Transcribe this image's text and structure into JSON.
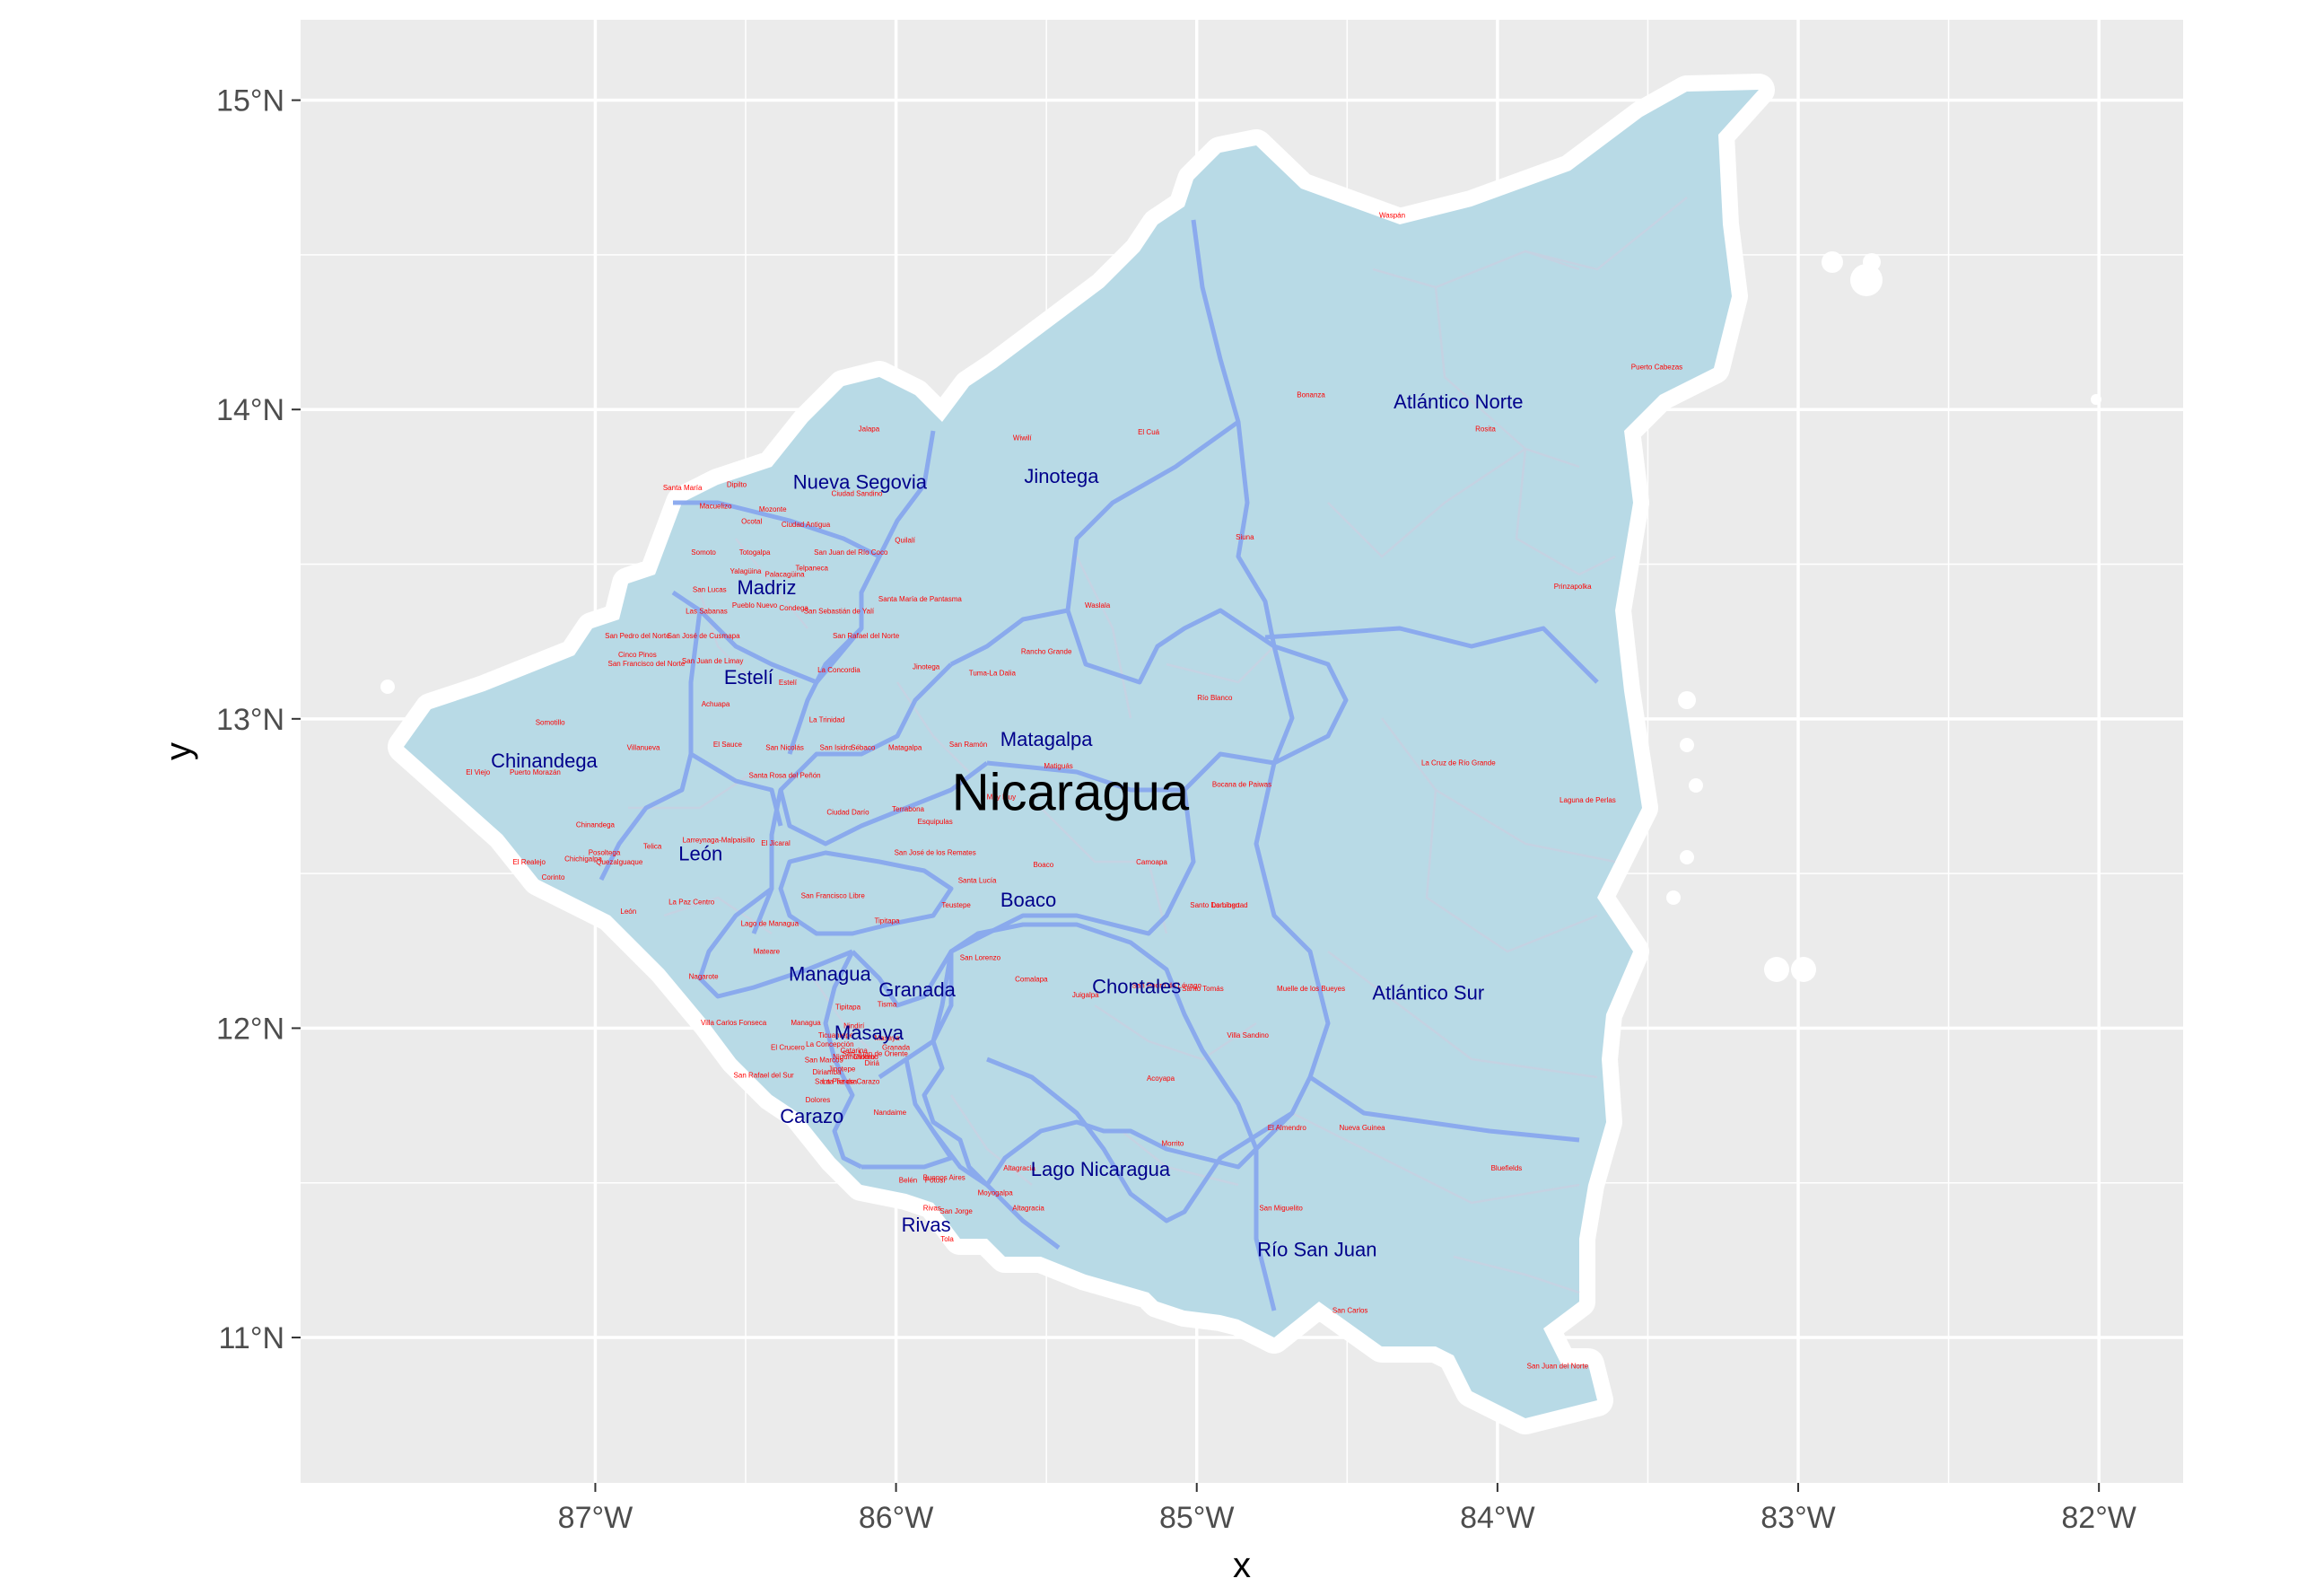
{
  "country": "Nicaragua",
  "colors": {
    "panel_bg": "#ebebeb",
    "grid": "#ffffff",
    "land_fill": "#b8dae6",
    "dept_border": "#88a8ee",
    "muni_border": "#c6d2e2",
    "dept_label": "#00008b",
    "muni_label": "#ff0000",
    "coast_halo": "#ffffff"
  },
  "axes": {
    "x_title": "x",
    "y_title": "y",
    "x_ticks": [
      {
        "lon": -87,
        "label": "87°W"
      },
      {
        "lon": -86,
        "label": "86°W"
      },
      {
        "lon": -85,
        "label": "85°W"
      },
      {
        "lon": -84,
        "label": "84°W"
      },
      {
        "lon": -83,
        "label": "83°W"
      },
      {
        "lon": -82,
        "label": "82°W"
      }
    ],
    "y_ticks": [
      {
        "lat": 11,
        "label": "11°N"
      },
      {
        "lat": 12,
        "label": "12°N"
      },
      {
        "lat": 13,
        "label": "13°N"
      },
      {
        "lat": 14,
        "label": "14°N"
      },
      {
        "lat": 15,
        "label": "15°N"
      }
    ],
    "lon_range": [
      -87.98,
      -81.72
    ],
    "lat_range": [
      10.53,
      15.26
    ],
    "grid": true
  },
  "country_label": {
    "text": "Nicaragua",
    "lon": -85.42,
    "lat": 12.75
  },
  "departments": [
    {
      "name": "Nueva Segovia",
      "lon": -86.12,
      "lat": 13.76
    },
    {
      "name": "Jinotega",
      "lon": -85.45,
      "lat": 13.78
    },
    {
      "name": "Atlántico Norte",
      "lon": -84.13,
      "lat": 14.02
    },
    {
      "name": "Madriz",
      "lon": -86.43,
      "lat": 13.42
    },
    {
      "name": "Estelí",
      "lon": -86.49,
      "lat": 13.13
    },
    {
      "name": "Chinandega",
      "lon": -87.17,
      "lat": 12.86
    },
    {
      "name": "Matagalpa",
      "lon": -85.5,
      "lat": 12.93
    },
    {
      "name": "León",
      "lon": -86.65,
      "lat": 12.56
    },
    {
      "name": "Boaco",
      "lon": -85.56,
      "lat": 12.41
    },
    {
      "name": "Managua",
      "lon": -86.22,
      "lat": 12.17
    },
    {
      "name": "Granada",
      "lon": -85.93,
      "lat": 12.12
    },
    {
      "name": "Chontales",
      "lon": -85.2,
      "lat": 12.13
    },
    {
      "name": "Atlántico Sur",
      "lon": -84.23,
      "lat": 12.11
    },
    {
      "name": "Masaya",
      "lon": -86.09,
      "lat": 11.98
    },
    {
      "name": "Carazo",
      "lon": -86.28,
      "lat": 11.71
    },
    {
      "name": "Lago Nicaragua",
      "lon": -85.32,
      "lat": 11.54
    },
    {
      "name": "Rivas",
      "lon": -85.9,
      "lat": 11.36
    },
    {
      "name": "Río San Juan",
      "lon": -84.6,
      "lat": 11.28
    }
  ],
  "municipalities": [
    {
      "name": "Waspán",
      "lon": -84.35,
      "lat": 14.62
    },
    {
      "name": "Puerto Cabezas",
      "lon": -83.47,
      "lat": 14.13
    },
    {
      "name": "Bonanza",
      "lon": -84.62,
      "lat": 14.04
    },
    {
      "name": "Rosita",
      "lon": -84.04,
      "lat": 13.93
    },
    {
      "name": "Wiwilí",
      "lon": -85.58,
      "lat": 13.9
    },
    {
      "name": "El Cuá",
      "lon": -85.16,
      "lat": 13.92
    },
    {
      "name": "Jalapa",
      "lon": -86.09,
      "lat": 13.93
    },
    {
      "name": "Siuna",
      "lon": -84.84,
      "lat": 13.58
    },
    {
      "name": "Prinzapolka",
      "lon": -83.75,
      "lat": 13.42
    },
    {
      "name": "Waslala",
      "lon": -85.33,
      "lat": 13.36
    },
    {
      "name": "Rancho Grande",
      "lon": -85.5,
      "lat": 13.21
    },
    {
      "name": "Río Blanco",
      "lon": -84.94,
      "lat": 13.06
    },
    {
      "name": "Jinotega",
      "lon": -85.9,
      "lat": 13.16
    },
    {
      "name": "Tuma-La Dalia",
      "lon": -85.68,
      "lat": 13.14
    },
    {
      "name": "La Cruz de Río Grande",
      "lon": -84.13,
      "lat": 12.85
    },
    {
      "name": "Laguna de Perlas",
      "lon": -83.7,
      "lat": 12.73
    },
    {
      "name": "Bocana de Paiwas",
      "lon": -84.85,
      "lat": 12.78
    },
    {
      "name": "Santa María",
      "lon": -86.71,
      "lat": 13.74
    },
    {
      "name": "Dipilto",
      "lon": -86.53,
      "lat": 13.75
    },
    {
      "name": "Macuelizo",
      "lon": -86.6,
      "lat": 13.68
    },
    {
      "name": "Mozonte",
      "lon": -86.41,
      "lat": 13.67
    },
    {
      "name": "Ciudad Sandino",
      "lon": -86.13,
      "lat": 13.72
    },
    {
      "name": "Ocotal",
      "lon": -86.48,
      "lat": 13.63
    },
    {
      "name": "Ciudad Antigua",
      "lon": -86.3,
      "lat": 13.62
    },
    {
      "name": "Somoto",
      "lon": -86.64,
      "lat": 13.53
    },
    {
      "name": "Totogalpa",
      "lon": -86.47,
      "lat": 13.53
    },
    {
      "name": "Quilalí",
      "lon": -85.97,
      "lat": 13.57
    },
    {
      "name": "San Juan del Río Coco",
      "lon": -86.15,
      "lat": 13.53
    },
    {
      "name": "Telpaneca",
      "lon": -86.28,
      "lat": 13.48
    },
    {
      "name": "Yalagüina",
      "lon": -86.5,
      "lat": 13.47
    },
    {
      "name": "Palacagüina",
      "lon": -86.37,
      "lat": 13.46
    },
    {
      "name": "San Lucas",
      "lon": -86.62,
      "lat": 13.41
    },
    {
      "name": "Santa María de Pantasma",
      "lon": -85.92,
      "lat": 13.38
    },
    {
      "name": "Las Sabanas",
      "lon": -86.63,
      "lat": 13.34
    },
    {
      "name": "Pueblo Nuevo",
      "lon": -86.47,
      "lat": 13.36
    },
    {
      "name": "Condega",
      "lon": -86.34,
      "lat": 13.35
    },
    {
      "name": "San Sebastián de Yalí",
      "lon": -86.19,
      "lat": 13.34
    },
    {
      "name": "San Rafael del Norte",
      "lon": -86.1,
      "lat": 13.26
    },
    {
      "name": "San Pedro del Norte",
      "lon": -86.86,
      "lat": 13.26
    },
    {
      "name": "San José de Cusmapa",
      "lon": -86.64,
      "lat": 13.26
    },
    {
      "name": "Cinco Pinos",
      "lon": -86.86,
      "lat": 13.2
    },
    {
      "name": "San Juan de Limay",
      "lon": -86.61,
      "lat": 13.18
    },
    {
      "name": "San Francisco del Norte",
      "lon": -86.83,
      "lat": 13.17
    },
    {
      "name": "La Concordia",
      "lon": -86.19,
      "lat": 13.15
    },
    {
      "name": "Estelí",
      "lon": -86.36,
      "lat": 13.11
    },
    {
      "name": "Achuapa",
      "lon": -86.6,
      "lat": 13.04
    },
    {
      "name": "Somotillo",
      "lon": -87.15,
      "lat": 12.98
    },
    {
      "name": "La Trinidad",
      "lon": -86.23,
      "lat": 12.99
    },
    {
      "name": "Villanueva",
      "lon": -86.84,
      "lat": 12.9
    },
    {
      "name": "El Sauce",
      "lon": -86.56,
      "lat": 12.91
    },
    {
      "name": "San Nicolás",
      "lon": -86.37,
      "lat": 12.9
    },
    {
      "name": "San Isidro",
      "lon": -86.2,
      "lat": 12.9
    },
    {
      "name": "Sébaco",
      "lon": -86.11,
      "lat": 12.9
    },
    {
      "name": "Matagalpa",
      "lon": -85.97,
      "lat": 12.9
    },
    {
      "name": "San Ramón",
      "lon": -85.76,
      "lat": 12.91
    },
    {
      "name": "El Viejo",
      "lon": -87.39,
      "lat": 12.82
    },
    {
      "name": "Puerto Morazán",
      "lon": -87.2,
      "lat": 12.82
    },
    {
      "name": "Santa Rosa del Peñón",
      "lon": -86.37,
      "lat": 12.81
    },
    {
      "name": "Chinandega",
      "lon": -87.0,
      "lat": 12.65
    },
    {
      "name": "Ciudad Darío",
      "lon": -86.16,
      "lat": 12.69
    },
    {
      "name": "Terrabona",
      "lon": -85.96,
      "lat": 12.7
    },
    {
      "name": "Esquipulas",
      "lon": -85.87,
      "lat": 12.66
    },
    {
      "name": "Muy Muy",
      "lon": -85.65,
      "lat": 12.74
    },
    {
      "name": "Matiguás",
      "lon": -85.46,
      "lat": 12.84
    },
    {
      "name": "Larreynaga-Malpaisillo",
      "lon": -86.59,
      "lat": 12.6
    },
    {
      "name": "Telica",
      "lon": -86.81,
      "lat": 12.58
    },
    {
      "name": "El Jicaral",
      "lon": -86.4,
      "lat": 12.59
    },
    {
      "name": "Posoltega",
      "lon": -86.97,
      "lat": 12.56
    },
    {
      "name": "Chichigalpa",
      "lon": -87.04,
      "lat": 12.54
    },
    {
      "name": "Quezalguaque",
      "lon": -86.92,
      "lat": 12.53
    },
    {
      "name": "El Realejo",
      "lon": -87.22,
      "lat": 12.53
    },
    {
      "name": "San José de los Remates",
      "lon": -85.87,
      "lat": 12.56
    },
    {
      "name": "Boaco",
      "lon": -85.51,
      "lat": 12.52
    },
    {
      "name": "Camoapa",
      "lon": -85.15,
      "lat": 12.53
    },
    {
      "name": "Corinto",
      "lon": -87.14,
      "lat": 12.48
    },
    {
      "name": "Santa Lucía",
      "lon": -85.73,
      "lat": 12.47
    },
    {
      "name": "San Francisco Libre",
      "lon": -86.21,
      "lat": 12.42
    },
    {
      "name": "La Paz Centro",
      "lon": -86.68,
      "lat": 12.4
    },
    {
      "name": "Teustepe",
      "lon": -85.8,
      "lat": 12.39
    },
    {
      "name": "La Libertad",
      "lon": -84.89,
      "lat": 12.39
    },
    {
      "name": "Santo Domingo",
      "lon": -84.94,
      "lat": 12.39
    },
    {
      "name": "León",
      "lon": -86.89,
      "lat": 12.37
    },
    {
      "name": "Tipitapa",
      "lon": -86.03,
      "lat": 12.34
    },
    {
      "name": "Lago de Managua",
      "lon": -86.42,
      "lat": 12.33
    },
    {
      "name": "San Lorenzo",
      "lon": -85.72,
      "lat": 12.22
    },
    {
      "name": "Mateare",
      "lon": -86.43,
      "lat": 12.24
    },
    {
      "name": "Nagarote",
      "lon": -86.64,
      "lat": 12.16
    },
    {
      "name": "Comalapa",
      "lon": -85.55,
      "lat": 12.15
    },
    {
      "name": "Juigalpa",
      "lon": -85.37,
      "lat": 12.1
    },
    {
      "name": "San Pedro de Lóvago",
      "lon": -85.1,
      "lat": 12.13
    },
    {
      "name": "Santo Tomás",
      "lon": -84.98,
      "lat": 12.12
    },
    {
      "name": "Muelle de los Bueyes",
      "lon": -84.62,
      "lat": 12.12
    },
    {
      "name": "Tisma",
      "lon": -86.03,
      "lat": 12.07
    },
    {
      "name": "Tipitapa",
      "lon": -86.16,
      "lat": 12.06
    },
    {
      "name": "Villa Carlos Fonseca",
      "lon": -86.54,
      "lat": 12.01
    },
    {
      "name": "Managua",
      "lon": -86.3,
      "lat": 12.01
    },
    {
      "name": "Villa Sandino",
      "lon": -84.83,
      "lat": 11.97
    },
    {
      "name": "La Concepción",
      "lon": -86.22,
      "lat": 11.94
    },
    {
      "name": "Ticuantepe",
      "lon": -86.2,
      "lat": 11.97
    },
    {
      "name": "Nindirí",
      "lon": -86.14,
      "lat": 12.0
    },
    {
      "name": "Masaya",
      "lon": -86.03,
      "lat": 11.96
    },
    {
      "name": "Granada",
      "lon": -86.0,
      "lat": 11.93
    },
    {
      "name": "Diriá",
      "lon": -86.08,
      "lat": 11.88
    },
    {
      "name": "Diriomo",
      "lon": -86.1,
      "lat": 11.9
    },
    {
      "name": "Niquinohomo",
      "lon": -86.14,
      "lat": 11.9
    },
    {
      "name": "El Crucero",
      "lon": -86.36,
      "lat": 11.93
    },
    {
      "name": "Catarina",
      "lon": -86.14,
      "lat": 11.92
    },
    {
      "name": "San Juan de Oriente",
      "lon": -86.07,
      "lat": 11.91
    },
    {
      "name": "Acoyapa",
      "lon": -85.12,
      "lat": 11.83
    },
    {
      "name": "San Rafael del Sur",
      "lon": -86.44,
      "lat": 11.84
    },
    {
      "name": "San Marcos",
      "lon": -86.24,
      "lat": 11.89
    },
    {
      "name": "Jinotepe",
      "lon": -86.18,
      "lat": 11.86
    },
    {
      "name": "Diriamba",
      "lon": -86.23,
      "lat": 11.85
    },
    {
      "name": "La Paz de Carazo",
      "lon": -86.15,
      "lat": 11.82
    },
    {
      "name": "Santa Teresa",
      "lon": -86.2,
      "lat": 11.82
    },
    {
      "name": "Dolores",
      "lon": -86.26,
      "lat": 11.76
    },
    {
      "name": "El Almendro",
      "lon": -84.7,
      "lat": 11.67
    },
    {
      "name": "Nueva Guinea",
      "lon": -84.45,
      "lat": 11.67
    },
    {
      "name": "Nandaime",
      "lon": -86.02,
      "lat": 11.72
    },
    {
      "name": "Morrito",
      "lon": -85.08,
      "lat": 11.62
    },
    {
      "name": "Bluefields",
      "lon": -83.97,
      "lat": 11.54
    },
    {
      "name": "Belén",
      "lon": -85.96,
      "lat": 11.5
    },
    {
      "name": "Potosí",
      "lon": -85.87,
      "lat": 11.5
    },
    {
      "name": "Buenos Aires",
      "lon": -85.84,
      "lat": 11.51
    },
    {
      "name": "Altagracia",
      "lon": -85.59,
      "lat": 11.54
    },
    {
      "name": "Moyogalpa",
      "lon": -85.67,
      "lat": 11.46
    },
    {
      "name": "Altagracia",
      "lon": -85.56,
      "lat": 11.41
    },
    {
      "name": "San Jorge",
      "lon": -85.8,
      "lat": 11.4
    },
    {
      "name": "Rivas",
      "lon": -85.88,
      "lat": 11.41
    },
    {
      "name": "San Miguelito",
      "lon": -84.72,
      "lat": 11.41
    },
    {
      "name": "Tola",
      "lon": -85.83,
      "lat": 11.31
    },
    {
      "name": "San Carlos",
      "lon": -84.49,
      "lat": 11.08
    },
    {
      "name": "San Juan del Norte",
      "lon": -83.8,
      "lat": 10.9
    }
  ]
}
